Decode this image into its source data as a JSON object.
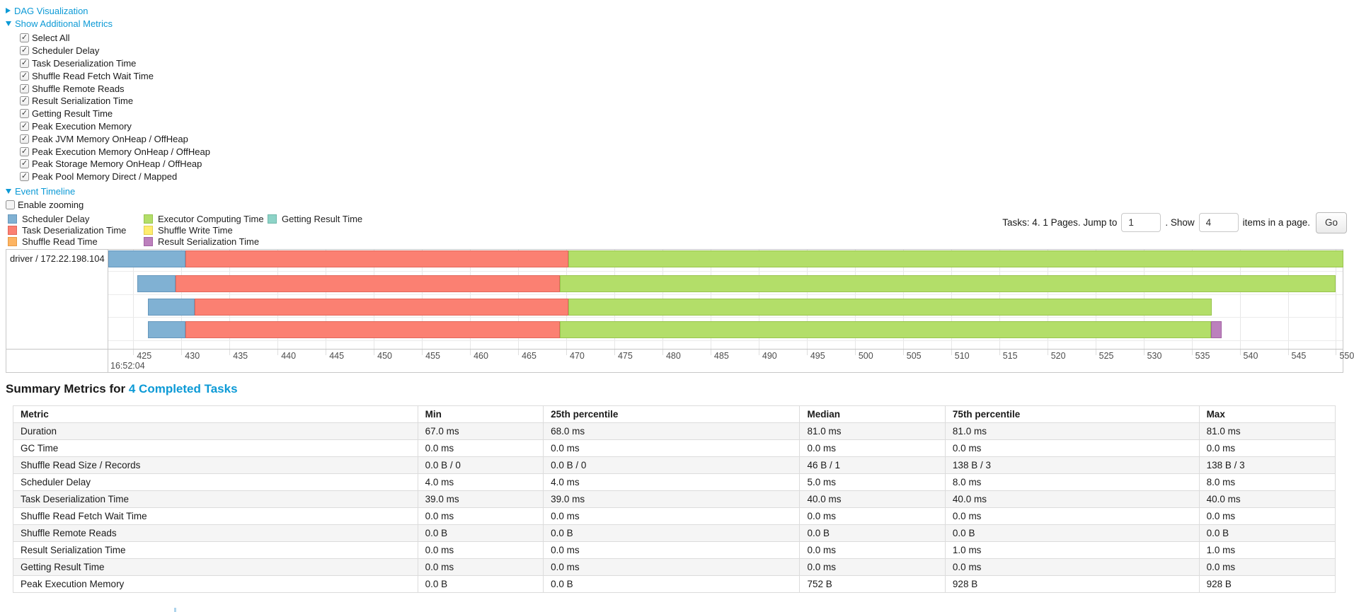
{
  "colors": {
    "link": "#0c9ad6",
    "scheduler_delay": {
      "fill": "#80B1D3",
      "border": "#6697BC"
    },
    "task_deserialization_time": {
      "fill": "#FB8072",
      "border": "#E2675B"
    },
    "shuffle_read_time": {
      "fill": "#FDB462",
      "border": "#E69A46"
    },
    "executor_computing_time": {
      "fill": "#B3DE69",
      "border": "#98C44D"
    },
    "shuffle_write_time": {
      "fill": "#FFED6F",
      "border": "#E2CF51"
    },
    "result_serialization_time": {
      "fill": "#BC80BD",
      "border": "#A263A3"
    },
    "getting_result_time": {
      "fill": "#8DD3C7",
      "border": "#6FB8AB"
    }
  },
  "controls": {
    "dag_visualization": {
      "label": "DAG Visualization"
    },
    "show_additional_metrics": {
      "label": "Show Additional Metrics"
    },
    "metric_checkboxes": [
      "Select All",
      "Scheduler Delay",
      "Task Deserialization Time",
      "Shuffle Read Fetch Wait Time",
      "Shuffle Remote Reads",
      "Result Serialization Time",
      "Getting Result Time",
      "Peak Execution Memory",
      "Peak JVM Memory OnHeap / OffHeap",
      "Peak Execution Memory OnHeap / OffHeap",
      "Peak Storage Memory OnHeap / OffHeap",
      "Peak Pool Memory Direct / Mapped"
    ],
    "event_timeline": {
      "label": "Event Timeline"
    },
    "enable_zooming": {
      "label": "Enable zooming",
      "checked": false
    }
  },
  "pagination": {
    "tasks_text": "Tasks: 4. 1 Pages. Jump to",
    "jump_value": "1",
    "show_text": ". Show",
    "show_value": "4",
    "items_text": "items in a page.",
    "go_label": "Go"
  },
  "chart_data": {
    "type": "timeline",
    "group_label": "driver / 172.22.198.104",
    "axis": {
      "major_label": "16:52:04",
      "unit": "ms",
      "tick_start": 425,
      "tick_end": 550,
      "tick_step": 5,
      "view_min_ms": 422.4,
      "view_max_ms": 550.7
    },
    "legend_columns": [
      [
        {
          "label": "Scheduler Delay",
          "key": "scheduler_delay"
        },
        {
          "label": "Task Deserialization Time",
          "key": "task_deserialization_time"
        },
        {
          "label": "Shuffle Read Time",
          "key": "shuffle_read_time"
        }
      ],
      [
        {
          "label": "Executor Computing Time",
          "key": "executor_computing_time"
        },
        {
          "label": "Shuffle Write Time",
          "key": "shuffle_write_time"
        },
        {
          "label": "Result Serialization Time",
          "key": "result_serialization_time"
        }
      ],
      [
        {
          "label": "Getting Result Time",
          "key": "getting_result_time"
        }
      ]
    ],
    "tasks": [
      {
        "segments": [
          {
            "key": "scheduler_delay",
            "start": 422.4,
            "end": 430.4
          },
          {
            "key": "task_deserialization_time",
            "start": 430.4,
            "end": 470.2
          },
          {
            "key": "executor_computing_time",
            "start": 470.2,
            "end": 550.8
          }
        ]
      },
      {
        "segments": [
          {
            "key": "scheduler_delay",
            "start": 425.4,
            "end": 429.4
          },
          {
            "key": "task_deserialization_time",
            "start": 429.4,
            "end": 469.3
          },
          {
            "key": "executor_computing_time",
            "start": 469.3,
            "end": 550.0
          }
        ]
      },
      {
        "segments": [
          {
            "key": "scheduler_delay",
            "start": 426.5,
            "end": 431.4
          },
          {
            "key": "task_deserialization_time",
            "start": 431.4,
            "end": 470.2
          },
          {
            "key": "executor_computing_time",
            "start": 470.2,
            "end": 537.1
          }
        ]
      },
      {
        "segments": [
          {
            "key": "scheduler_delay",
            "start": 426.5,
            "end": 430.4
          },
          {
            "key": "task_deserialization_time",
            "start": 430.4,
            "end": 469.3
          },
          {
            "key": "executor_computing_time",
            "start": 469.3,
            "end": 537.0
          },
          {
            "key": "result_serialization_time",
            "start": 537.0,
            "end": 538.1
          }
        ]
      }
    ]
  },
  "summary": {
    "title_prefix": "Summary Metrics for",
    "title_link": "4 Completed Tasks",
    "columns": [
      "Metric",
      "Min",
      "25th percentile",
      "Median",
      "75th percentile",
      "Max"
    ],
    "rows": [
      {
        "metric": "Duration",
        "values": [
          "67.0 ms",
          "68.0 ms",
          "81.0 ms",
          "81.0 ms",
          "81.0 ms"
        ]
      },
      {
        "metric": "GC Time",
        "values": [
          "0.0 ms",
          "0.0 ms",
          "0.0 ms",
          "0.0 ms",
          "0.0 ms"
        ]
      },
      {
        "metric": "Shuffle Read Size / Records",
        "values": [
          "0.0 B / 0",
          "0.0 B / 0",
          "46 B / 1",
          "138 B / 3",
          "138 B / 3"
        ]
      },
      {
        "metric": "Scheduler Delay",
        "values": [
          "4.0 ms",
          "4.0 ms",
          "5.0 ms",
          "8.0 ms",
          "8.0 ms"
        ]
      },
      {
        "metric": "Task Deserialization Time",
        "values": [
          "39.0 ms",
          "39.0 ms",
          "40.0 ms",
          "40.0 ms",
          "40.0 ms"
        ]
      },
      {
        "metric": "Shuffle Read Fetch Wait Time",
        "values": [
          "0.0 ms",
          "0.0 ms",
          "0.0 ms",
          "0.0 ms",
          "0.0 ms"
        ]
      },
      {
        "metric": "Shuffle Remote Reads",
        "values": [
          "0.0 B",
          "0.0 B",
          "0.0 B",
          "0.0 B",
          "0.0 B"
        ]
      },
      {
        "metric": "Result Serialization Time",
        "values": [
          "0.0 ms",
          "0.0 ms",
          "0.0 ms",
          "1.0 ms",
          "1.0 ms"
        ]
      },
      {
        "metric": "Getting Result Time",
        "values": [
          "0.0 ms",
          "0.0 ms",
          "0.0 ms",
          "0.0 ms",
          "0.0 ms"
        ]
      },
      {
        "metric": "Peak Execution Memory",
        "values": [
          "0.0 B",
          "0.0 B",
          "752 B",
          "928 B",
          "928 B"
        ]
      }
    ]
  }
}
